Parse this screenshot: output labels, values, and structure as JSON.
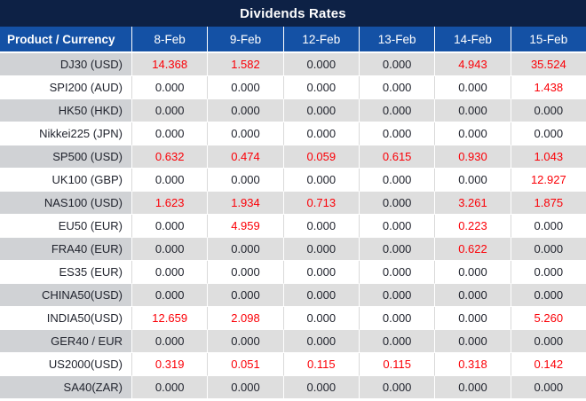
{
  "title": "Dividends Rates",
  "colors": {
    "title-bar": "#0d2145",
    "header-bar": "#1451a5",
    "shaded-product-bg": "#d0d2d5",
    "shaded-value-bg": "#dedede",
    "plain-bg": "#ffffff",
    "grid-line": "#d9d9d9",
    "text-dark": "#21242e",
    "text-red": "#fb0007",
    "text-light": "#ffffff"
  },
  "table": {
    "product_header": "Product / Currency",
    "date_columns": [
      "8-Feb",
      "9-Feb",
      "12-Feb",
      "13-Feb",
      "14-Feb",
      "15-Feb"
    ],
    "rows": [
      {
        "product": "DJ30 (USD)",
        "values": [
          "14.368",
          "1.582",
          "0.000",
          "0.000",
          "4.943",
          "35.524"
        ],
        "red": [
          true,
          true,
          false,
          false,
          true,
          true
        ]
      },
      {
        "product": "SPI200 (AUD)",
        "values": [
          "0.000",
          "0.000",
          "0.000",
          "0.000",
          "0.000",
          "1.438"
        ],
        "red": [
          false,
          false,
          false,
          false,
          false,
          true
        ]
      },
      {
        "product": "HK50 (HKD)",
        "values": [
          "0.000",
          "0.000",
          "0.000",
          "0.000",
          "0.000",
          "0.000"
        ],
        "red": [
          false,
          false,
          false,
          false,
          false,
          false
        ]
      },
      {
        "product": "Nikkei225 (JPN)",
        "values": [
          "0.000",
          "0.000",
          "0.000",
          "0.000",
          "0.000",
          "0.000"
        ],
        "red": [
          false,
          false,
          false,
          false,
          false,
          false
        ]
      },
      {
        "product": "SP500 (USD)",
        "values": [
          "0.632",
          "0.474",
          "0.059",
          "0.615",
          "0.930",
          "1.043"
        ],
        "red": [
          true,
          true,
          true,
          true,
          true,
          true
        ]
      },
      {
        "product": "UK100 (GBP)",
        "values": [
          "0.000",
          "0.000",
          "0.000",
          "0.000",
          "0.000",
          "12.927"
        ],
        "red": [
          false,
          false,
          false,
          false,
          false,
          true
        ]
      },
      {
        "product": "NAS100 (USD)",
        "values": [
          "1.623",
          "1.934",
          "0.713",
          "0.000",
          "3.261",
          "1.875"
        ],
        "red": [
          true,
          true,
          true,
          false,
          true,
          true
        ]
      },
      {
        "product": "EU50 (EUR)",
        "values": [
          "0.000",
          "4.959",
          "0.000",
          "0.000",
          "0.223",
          "0.000"
        ],
        "red": [
          false,
          true,
          false,
          false,
          true,
          false
        ]
      },
      {
        "product": "FRA40 (EUR)",
        "values": [
          "0.000",
          "0.000",
          "0.000",
          "0.000",
          "0.622",
          "0.000"
        ],
        "red": [
          false,
          false,
          false,
          false,
          true,
          false
        ]
      },
      {
        "product": "ES35 (EUR)",
        "values": [
          "0.000",
          "0.000",
          "0.000",
          "0.000",
          "0.000",
          "0.000"
        ],
        "red": [
          false,
          false,
          false,
          false,
          false,
          false
        ]
      },
      {
        "product": "CHINA50(USD)",
        "values": [
          "0.000",
          "0.000",
          "0.000",
          "0.000",
          "0.000",
          "0.000"
        ],
        "red": [
          false,
          false,
          false,
          false,
          false,
          false
        ]
      },
      {
        "product": "INDIA50(USD)",
        "values": [
          "12.659",
          "2.098",
          "0.000",
          "0.000",
          "0.000",
          "5.260"
        ],
        "red": [
          true,
          true,
          false,
          false,
          false,
          true
        ]
      },
      {
        "product": "GER40 / EUR",
        "values": [
          "0.000",
          "0.000",
          "0.000",
          "0.000",
          "0.000",
          "0.000"
        ],
        "red": [
          false,
          false,
          false,
          false,
          false,
          false
        ]
      },
      {
        "product": "US2000(USD)",
        "values": [
          "0.319",
          "0.051",
          "0.115",
          "0.115",
          "0.318",
          "0.142"
        ],
        "red": [
          true,
          true,
          true,
          true,
          true,
          true
        ]
      },
      {
        "product": "SA40(ZAR)",
        "values": [
          "0.000",
          "0.000",
          "0.000",
          "0.000",
          "0.000",
          "0.000"
        ],
        "red": [
          false,
          false,
          false,
          false,
          false,
          false
        ]
      }
    ]
  }
}
